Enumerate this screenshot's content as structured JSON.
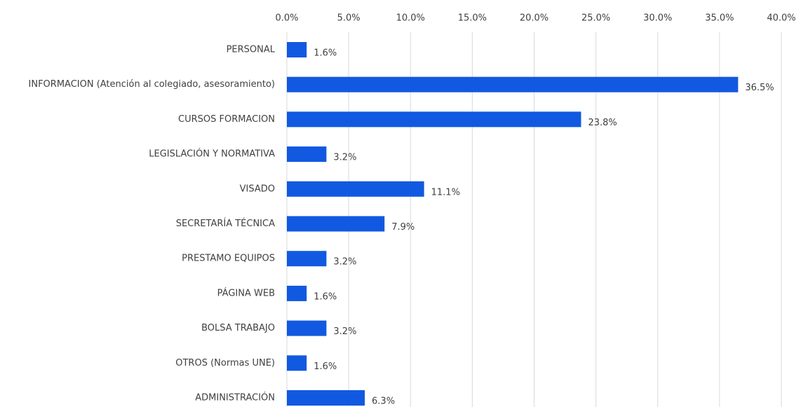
{
  "chart_data": {
    "type": "bar",
    "orientation": "horizontal",
    "categories": [
      "PERSONAL",
      "INFORMACION (Atención al colegiado, asesoramiento)",
      "CURSOS FORMACION",
      "LEGISLACIÓN Y NORMATIVA",
      "VISADO",
      "SECRETARÍA TÉCNICA",
      "PRESTAMO EQUIPOS",
      "PÁGINA WEB",
      "BOLSA TRABAJO",
      "OTROS (Normas UNE)",
      "ADMINISTRACIÓN"
    ],
    "values": [
      1.6,
      36.5,
      23.8,
      3.2,
      11.1,
      7.9,
      3.2,
      1.6,
      3.2,
      1.6,
      6.3
    ],
    "value_labels": [
      "1.6%",
      "36.5%",
      "23.8%",
      "3.2%",
      "11.1%",
      "7.9%",
      "3.2%",
      "1.6%",
      "3.2%",
      "1.6%",
      "6.3%"
    ],
    "color": "#1159e0",
    "xlim": [
      0,
      40
    ],
    "xticks": [
      {
        "value": 0,
        "label": "0.0%"
      },
      {
        "value": 5,
        "label": "5.0%"
      },
      {
        "value": 10,
        "label": "10.0%"
      },
      {
        "value": 15,
        "label": "15.0%"
      },
      {
        "value": 20,
        "label": "20.0%"
      },
      {
        "value": 25,
        "label": "25.0%"
      },
      {
        "value": 30,
        "label": "30.0%"
      },
      {
        "value": 35,
        "label": "35.0%"
      },
      {
        "value": 40,
        "label": "40.0%"
      }
    ],
    "grid": true
  }
}
